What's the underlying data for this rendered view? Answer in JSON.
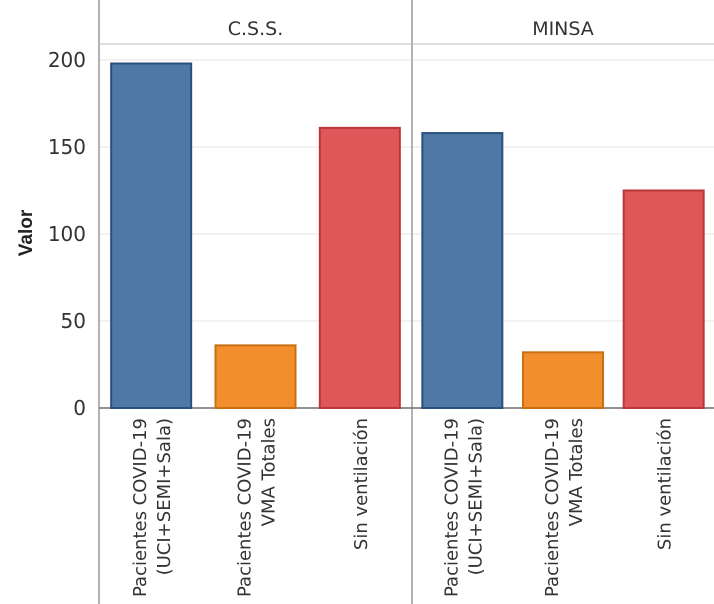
{
  "chart_data": {
    "type": "bar",
    "ylabel": "Valor",
    "ylim": [
      0,
      210
    ],
    "yticks": [
      0,
      50,
      100,
      150,
      200
    ],
    "grid": true,
    "panels": [
      {
        "name": "C.S.S.",
        "categories": [
          [
            "Pacientes COVID-19",
            "(UCI+SEMI+Sala)"
          ],
          [
            "Pacientes COVID-19",
            "VMA Totales"
          ],
          [
            "Sin ventilación"
          ]
        ],
        "values": [
          198,
          36,
          161
        ]
      },
      {
        "name": "MINSA",
        "categories": [
          [
            "Pacientes COVID-19",
            "(UCI+SEMI+Sala)"
          ],
          [
            "Pacientes COVID-19",
            "VMA Totales"
          ],
          [
            "Sin ventilación"
          ]
        ],
        "values": [
          158,
          32,
          125
        ]
      }
    ],
    "colors": {
      "Pacientes COVID-19 (UCI+SEMI+Sala)": {
        "fill": "#4e79a7",
        "stroke": "#2b4f7c"
      },
      "Pacientes COVID-19 VMA Totales": {
        "fill": "#f28e2b",
        "stroke": "#c96f14"
      },
      "Sin ventilación": {
        "fill": "#e15759",
        "stroke": "#b8363a"
      }
    }
  }
}
